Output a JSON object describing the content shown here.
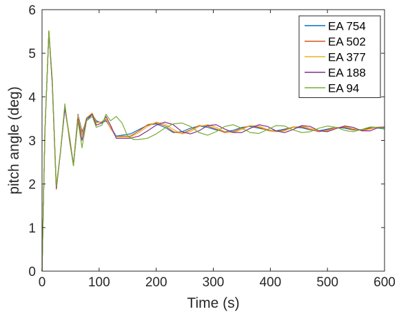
{
  "chart_data": {
    "type": "line",
    "xlabel": "Time (s)",
    "ylabel": "pitch angle (deg)",
    "xlim": [
      0,
      600
    ],
    "ylim": [
      0,
      6
    ],
    "x_ticks": [
      0,
      100,
      200,
      300,
      400,
      500,
      600
    ],
    "y_ticks": [
      0,
      1,
      2,
      3,
      4,
      5,
      6
    ],
    "grid": false,
    "legend_position": "top-right",
    "series": [
      {
        "name": "EA 754",
        "color": "#0072BD",
        "points": [
          [
            0,
            0
          ],
          [
            5,
            3.2
          ],
          [
            12,
            5.48
          ],
          [
            18,
            4.3
          ],
          [
            25,
            1.9
          ],
          [
            32,
            2.7
          ],
          [
            40,
            3.75
          ],
          [
            48,
            3.1
          ],
          [
            55,
            2.45
          ],
          [
            63,
            3.6
          ],
          [
            70,
            3.2
          ],
          [
            78,
            3.45
          ],
          [
            88,
            3.6
          ],
          [
            95,
            3.45
          ],
          [
            105,
            3.4
          ],
          [
            112,
            3.45
          ],
          [
            120,
            3.3
          ],
          [
            130,
            3.1
          ],
          [
            140,
            3.12
          ],
          [
            155,
            3.15
          ],
          [
            170,
            3.25
          ],
          [
            185,
            3.35
          ],
          [
            200,
            3.38
          ],
          [
            215,
            3.3
          ],
          [
            230,
            3.18
          ],
          [
            245,
            3.2
          ],
          [
            260,
            3.28
          ],
          [
            275,
            3.33
          ],
          [
            290,
            3.3
          ],
          [
            305,
            3.24
          ],
          [
            320,
            3.2
          ],
          [
            335,
            3.23
          ],
          [
            350,
            3.3
          ],
          [
            365,
            3.32
          ],
          [
            380,
            3.28
          ],
          [
            395,
            3.24
          ],
          [
            410,
            3.22
          ],
          [
            425,
            3.26
          ],
          [
            440,
            3.3
          ],
          [
            455,
            3.29
          ],
          [
            470,
            3.24
          ],
          [
            485,
            3.22
          ],
          [
            500,
            3.26
          ],
          [
            515,
            3.3
          ],
          [
            530,
            3.28
          ],
          [
            545,
            3.24
          ],
          [
            560,
            3.25
          ],
          [
            575,
            3.29
          ],
          [
            590,
            3.28
          ],
          [
            600,
            3.26
          ]
        ]
      },
      {
        "name": "EA 502",
        "color": "#D95319",
        "points": [
          [
            0,
            0
          ],
          [
            5,
            3.2
          ],
          [
            12,
            5.5
          ],
          [
            18,
            4.3
          ],
          [
            25,
            1.88
          ],
          [
            32,
            2.7
          ],
          [
            40,
            3.76
          ],
          [
            48,
            3.1
          ],
          [
            55,
            2.43
          ],
          [
            63,
            3.58
          ],
          [
            70,
            3.15
          ],
          [
            78,
            3.5
          ],
          [
            88,
            3.62
          ],
          [
            95,
            3.42
          ],
          [
            105,
            3.42
          ],
          [
            112,
            3.48
          ],
          [
            120,
            3.28
          ],
          [
            130,
            3.08
          ],
          [
            140,
            3.1
          ],
          [
            155,
            3.1
          ],
          [
            170,
            3.22
          ],
          [
            185,
            3.36
          ],
          [
            200,
            3.4
          ],
          [
            215,
            3.34
          ],
          [
            230,
            3.2
          ],
          [
            245,
            3.16
          ],
          [
            260,
            3.24
          ],
          [
            275,
            3.34
          ],
          [
            290,
            3.33
          ],
          [
            305,
            3.26
          ],
          [
            320,
            3.18
          ],
          [
            335,
            3.2
          ],
          [
            350,
            3.28
          ],
          [
            365,
            3.34
          ],
          [
            380,
            3.3
          ],
          [
            395,
            3.23
          ],
          [
            410,
            3.2
          ],
          [
            425,
            3.24
          ],
          [
            440,
            3.31
          ],
          [
            455,
            3.31
          ],
          [
            470,
            3.25
          ],
          [
            485,
            3.2
          ],
          [
            500,
            3.24
          ],
          [
            515,
            3.3
          ],
          [
            530,
            3.3
          ],
          [
            545,
            3.25
          ],
          [
            560,
            3.23
          ],
          [
            575,
            3.28
          ],
          [
            590,
            3.3
          ],
          [
            600,
            3.27
          ]
        ]
      },
      {
        "name": "EA 377",
        "color": "#EDB120",
        "points": [
          [
            0,
            0
          ],
          [
            5,
            3.2
          ],
          [
            12,
            5.5
          ],
          [
            18,
            4.3
          ],
          [
            25,
            1.9
          ],
          [
            32,
            2.72
          ],
          [
            40,
            3.76
          ],
          [
            48,
            3.1
          ],
          [
            55,
            2.43
          ],
          [
            63,
            3.57
          ],
          [
            70,
            3.12
          ],
          [
            78,
            3.52
          ],
          [
            88,
            3.63
          ],
          [
            95,
            3.4
          ],
          [
            105,
            3.43
          ],
          [
            112,
            3.5
          ],
          [
            120,
            3.3
          ],
          [
            130,
            3.08
          ],
          [
            140,
            3.08
          ],
          [
            155,
            3.08
          ],
          [
            170,
            3.18
          ],
          [
            185,
            3.32
          ],
          [
            200,
            3.42
          ],
          [
            215,
            3.38
          ],
          [
            230,
            3.25
          ],
          [
            245,
            3.15
          ],
          [
            260,
            3.2
          ],
          [
            275,
            3.32
          ],
          [
            290,
            3.36
          ],
          [
            305,
            3.3
          ],
          [
            320,
            3.2
          ],
          [
            335,
            3.18
          ],
          [
            350,
            3.25
          ],
          [
            365,
            3.34
          ],
          [
            380,
            3.33
          ],
          [
            395,
            3.25
          ],
          [
            410,
            3.2
          ],
          [
            425,
            3.22
          ],
          [
            440,
            3.3
          ],
          [
            455,
            3.33
          ],
          [
            470,
            3.28
          ],
          [
            485,
            3.21
          ],
          [
            500,
            3.22
          ],
          [
            515,
            3.29
          ],
          [
            530,
            3.32
          ],
          [
            545,
            3.27
          ],
          [
            560,
            3.22
          ],
          [
            575,
            3.26
          ],
          [
            590,
            3.31
          ],
          [
            600,
            3.29
          ]
        ]
      },
      {
        "name": "EA 188",
        "color": "#7E2F8E",
        "points": [
          [
            0,
            0
          ],
          [
            5,
            3.2
          ],
          [
            12,
            5.5
          ],
          [
            18,
            4.3
          ],
          [
            25,
            1.9
          ],
          [
            32,
            2.7
          ],
          [
            40,
            3.74
          ],
          [
            48,
            3.05
          ],
          [
            55,
            2.42
          ],
          [
            63,
            3.5
          ],
          [
            70,
            3.0
          ],
          [
            78,
            3.5
          ],
          [
            88,
            3.6
          ],
          [
            95,
            3.35
          ],
          [
            105,
            3.4
          ],
          [
            112,
            3.55
          ],
          [
            120,
            3.35
          ],
          [
            130,
            3.05
          ],
          [
            140,
            3.05
          ],
          [
            155,
            3.05
          ],
          [
            170,
            3.1
          ],
          [
            185,
            3.22
          ],
          [
            200,
            3.35
          ],
          [
            215,
            3.42
          ],
          [
            230,
            3.36
          ],
          [
            245,
            3.2
          ],
          [
            260,
            3.15
          ],
          [
            275,
            3.22
          ],
          [
            290,
            3.34
          ],
          [
            305,
            3.36
          ],
          [
            320,
            3.26
          ],
          [
            335,
            3.18
          ],
          [
            350,
            3.18
          ],
          [
            365,
            3.28
          ],
          [
            380,
            3.36
          ],
          [
            395,
            3.32
          ],
          [
            410,
            3.22
          ],
          [
            425,
            3.18
          ],
          [
            440,
            3.25
          ],
          [
            455,
            3.34
          ],
          [
            470,
            3.32
          ],
          [
            485,
            3.22
          ],
          [
            500,
            3.2
          ],
          [
            515,
            3.27
          ],
          [
            530,
            3.33
          ],
          [
            545,
            3.3
          ],
          [
            560,
            3.22
          ],
          [
            575,
            3.22
          ],
          [
            590,
            3.3
          ],
          [
            600,
            3.31
          ]
        ]
      },
      {
        "name": "EA 94",
        "color": "#77AC30",
        "points": [
          [
            0,
            0
          ],
          [
            5,
            3.2
          ],
          [
            12,
            5.52
          ],
          [
            18,
            4.4
          ],
          [
            25,
            1.95
          ],
          [
            32,
            2.7
          ],
          [
            40,
            3.84
          ],
          [
            48,
            3.0
          ],
          [
            55,
            2.42
          ],
          [
            63,
            3.45
          ],
          [
            70,
            2.83
          ],
          [
            78,
            3.45
          ],
          [
            88,
            3.55
          ],
          [
            95,
            3.3
          ],
          [
            105,
            3.35
          ],
          [
            112,
            3.6
          ],
          [
            120,
            3.45
          ],
          [
            130,
            3.55
          ],
          [
            140,
            3.4
          ],
          [
            150,
            3.1
          ],
          [
            160,
            3.02
          ],
          [
            170,
            3.02
          ],
          [
            185,
            3.05
          ],
          [
            200,
            3.15
          ],
          [
            215,
            3.28
          ],
          [
            230,
            3.38
          ],
          [
            245,
            3.4
          ],
          [
            260,
            3.32
          ],
          [
            275,
            3.18
          ],
          [
            290,
            3.12
          ],
          [
            305,
            3.2
          ],
          [
            320,
            3.32
          ],
          [
            335,
            3.36
          ],
          [
            350,
            3.28
          ],
          [
            365,
            3.18
          ],
          [
            380,
            3.16
          ],
          [
            395,
            3.25
          ],
          [
            410,
            3.34
          ],
          [
            425,
            3.33
          ],
          [
            440,
            3.24
          ],
          [
            455,
            3.18
          ],
          [
            470,
            3.2
          ],
          [
            485,
            3.28
          ],
          [
            500,
            3.33
          ],
          [
            515,
            3.3
          ],
          [
            530,
            3.23
          ],
          [
            545,
            3.2
          ],
          [
            560,
            3.25
          ],
          [
            575,
            3.31
          ],
          [
            590,
            3.3
          ],
          [
            600,
            3.26
          ]
        ]
      }
    ]
  }
}
